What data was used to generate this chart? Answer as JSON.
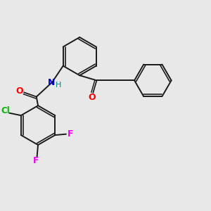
{
  "bg_color": "#e8e8e8",
  "bond_color": "#1a1a1a",
  "bond_width": 1.4,
  "atom_colors": {
    "O": "#ff0000",
    "N": "#0000cc",
    "Cl": "#00bb00",
    "F": "#ee00ee",
    "H": "#008888"
  },
  "font_size_atom": 9,
  "font_size_h": 8,
  "font_size_cl": 8.5
}
